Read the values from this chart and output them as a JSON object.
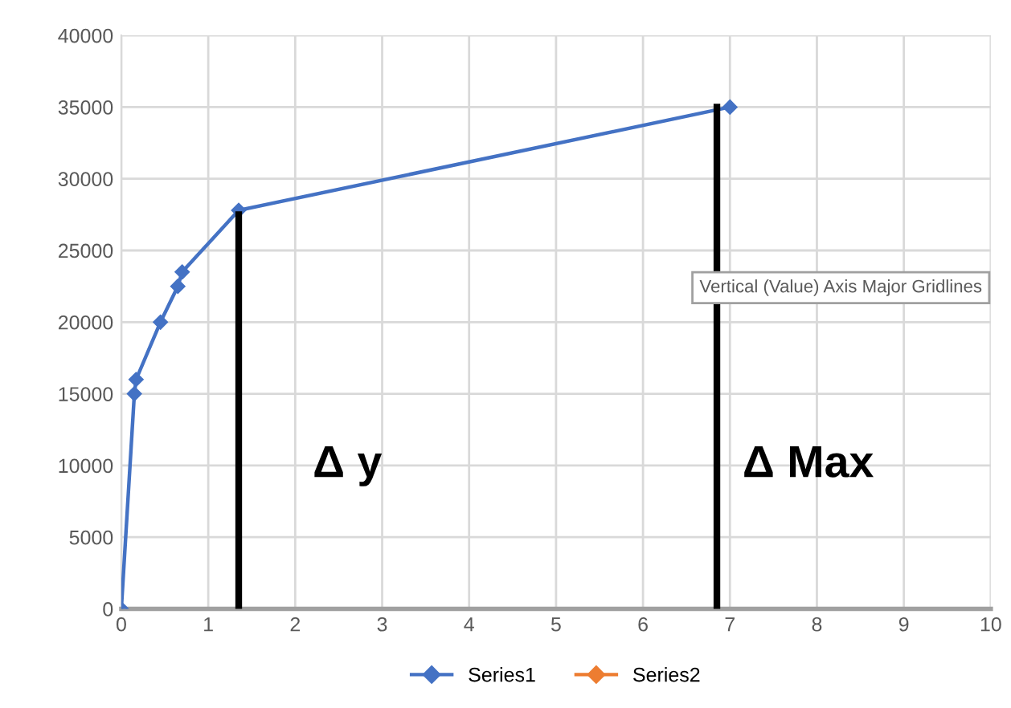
{
  "chart_data": {
    "type": "line",
    "xlim": [
      0,
      10
    ],
    "xticks": [
      0,
      1,
      2,
      3,
      4,
      5,
      6,
      7,
      8,
      9,
      10
    ],
    "ylim": [
      0,
      40000
    ],
    "yticks": [
      0,
      5000,
      10000,
      15000,
      20000,
      25000,
      30000,
      35000,
      40000
    ],
    "grid": true,
    "legend": "bottom",
    "marker": "diamond",
    "line_style": "solid",
    "series": [
      {
        "name": "Series1",
        "color": "#4472c4",
        "x": [
          0,
          0.15,
          0.17,
          0.45,
          0.65,
          0.7,
          1.35,
          7
        ],
        "values": [
          0,
          15000,
          16000,
          20000,
          22500,
          23500,
          27800,
          35000
        ]
      },
      {
        "name": "Series2",
        "color": "#ed7d31"
      },
      {
        "color": "#000000",
        "marker": "none",
        "x": [
          1.35,
          1.35
        ],
        "values": [
          0,
          27500
        ]
      },
      {
        "color": "#000000",
        "marker": "none",
        "x": [
          6.85,
          6.85
        ],
        "values": [
          0,
          35000
        ]
      }
    ],
    "annotations": [
      "Δ y",
      "Δ Max",
      "Vertical (Value) Axis Major Gridlines"
    ]
  }
}
